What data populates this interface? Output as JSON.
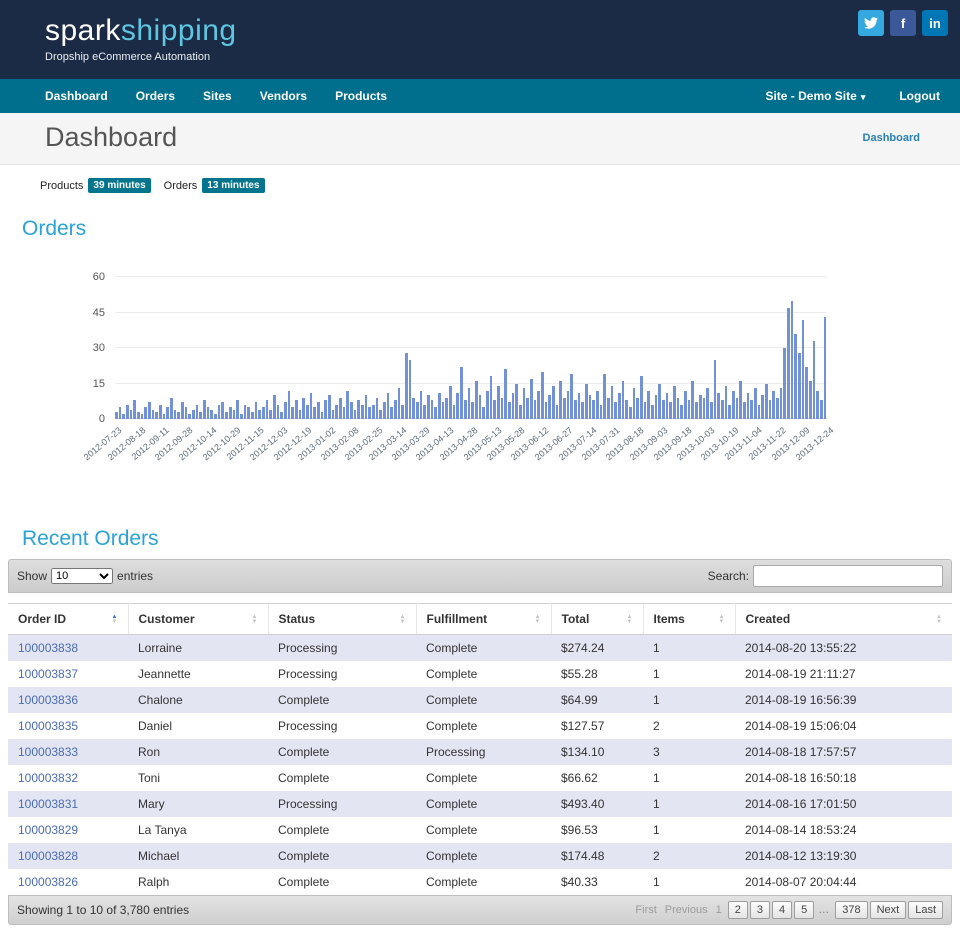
{
  "header": {
    "logo_primary": "spark",
    "logo_secondary": "shipping",
    "tagline": "Dropship eCommerce Automation",
    "social": {
      "facebook_glyph": "f",
      "linkedin_glyph": "in"
    },
    "colors": {
      "twitter": "#35a8df",
      "facebook": "#3b5998",
      "linkedin": "#0077b5"
    }
  },
  "nav": {
    "items": [
      "Dashboard",
      "Orders",
      "Sites",
      "Vendors",
      "Products"
    ],
    "site_selector": "Site - Demo Site",
    "logout": "Logout"
  },
  "page": {
    "title": "Dashboard",
    "breadcrumb": "Dashboard"
  },
  "sync_status": [
    {
      "label": "Products",
      "badge": "39 minutes"
    },
    {
      "label": "Orders",
      "badge": "13 minutes"
    }
  ],
  "sections": {
    "orders_heading": "Orders",
    "recent_orders_heading": "Recent Orders"
  },
  "chart_data": {
    "type": "bar",
    "title": "Orders",
    "xlabel": "",
    "ylabel": "",
    "ylim": [
      0,
      60
    ],
    "yticks": [
      0,
      15,
      30,
      45,
      60
    ],
    "bar_color": "#7291d6",
    "x_ticks": [
      "2012-07-23",
      "2012-08-18",
      "2012-09-11",
      "2012-09-28",
      "2012-10-14",
      "2012-10-29",
      "2012-11-15",
      "2012-12-03",
      "2012-12-19",
      "2013-01-02",
      "2013-02-08",
      "2013-02-25",
      "2013-03-14",
      "2013-03-29",
      "2013-04-13",
      "2013-04-28",
      "2013-05-13",
      "2013-05-28",
      "2013-06-12",
      "2013-06-27",
      "2013-07-14",
      "2013-07-31",
      "2013-08-18",
      "2013-09-03",
      "2013-09-18",
      "2013-10-03",
      "2013-10-19",
      "2013-11-04",
      "2013-11-22",
      "2013-12-09",
      "2013-12-24"
    ],
    "values": [
      3,
      5,
      2,
      6,
      4,
      8,
      3,
      2,
      5,
      7,
      4,
      3,
      6,
      2,
      5,
      9,
      4,
      3,
      7,
      5,
      2,
      4,
      6,
      3,
      8,
      5,
      4,
      2,
      6,
      7,
      3,
      5,
      4,
      8,
      2,
      6,
      5,
      3,
      7,
      4,
      5,
      8,
      4,
      10,
      6,
      3,
      7,
      12,
      5,
      8,
      4,
      9,
      6,
      11,
      5,
      7,
      3,
      8,
      10,
      4,
      6,
      9,
      5,
      12,
      7,
      4,
      8,
      6,
      10,
      5,
      6,
      9,
      4,
      7,
      11,
      5,
      8,
      13,
      6,
      28,
      25,
      9,
      7,
      12,
      6,
      10,
      8,
      5,
      11,
      7,
      9,
      14,
      6,
      11,
      22,
      8,
      13,
      7,
      16,
      10,
      5,
      12,
      18,
      8,
      14,
      9,
      21,
      7,
      11,
      15,
      6,
      13,
      9,
      17,
      8,
      12,
      20,
      7,
      10,
      14,
      6,
      16,
      9,
      12,
      19,
      8,
      11,
      7,
      15,
      10,
      8,
      12,
      6,
      19,
      9,
      14,
      7,
      11,
      16,
      8,
      5,
      13,
      9,
      18,
      7,
      12,
      6,
      10,
      15,
      8,
      11,
      7,
      14,
      9,
      6,
      12,
      8,
      16,
      7,
      10,
      9,
      13,
      7,
      25,
      11,
      8,
      14,
      6,
      12,
      9,
      16,
      7,
      11,
      8,
      13,
      6,
      10,
      15,
      8,
      12,
      9,
      13,
      30,
      47,
      50,
      36,
      28,
      42,
      22,
      16,
      33,
      12,
      8,
      43
    ]
  },
  "table": {
    "show_label": "Show",
    "show_value": "10",
    "entries_label": "entries",
    "search_label": "Search:",
    "columns": [
      {
        "label": "Order ID",
        "sorted": "asc"
      },
      {
        "label": "Customer",
        "sorted": "none"
      },
      {
        "label": "Status",
        "sorted": "none"
      },
      {
        "label": "Fulfillment",
        "sorted": "none"
      },
      {
        "label": "Total",
        "sorted": "none"
      },
      {
        "label": "Items",
        "sorted": "none"
      },
      {
        "label": "Created",
        "sorted": "none"
      }
    ],
    "rows": [
      [
        "100003838",
        "Lorraine",
        "Processing",
        "Complete",
        "$274.24",
        "1",
        "2014-08-20 13:55:22"
      ],
      [
        "100003837",
        "Jeannette",
        "Processing",
        "Complete",
        "$55.28",
        "1",
        "2014-08-19 21:11:27"
      ],
      [
        "100003836",
        "Chalone",
        "Complete",
        "Complete",
        "$64.99",
        "1",
        "2014-08-19 16:56:39"
      ],
      [
        "100003835",
        "Daniel",
        "Processing",
        "Complete",
        "$127.57",
        "2",
        "2014-08-19 15:06:04"
      ],
      [
        "100003833",
        "Ron",
        "Complete",
        "Processing",
        "$134.10",
        "3",
        "2014-08-18 17:57:57"
      ],
      [
        "100003832",
        "Toni",
        "Complete",
        "Complete",
        "$66.62",
        "1",
        "2014-08-18 16:50:18"
      ],
      [
        "100003831",
        "Mary",
        "Processing",
        "Complete",
        "$493.40",
        "1",
        "2014-08-16 17:01:50"
      ],
      [
        "100003829",
        "La Tanya",
        "Complete",
        "Complete",
        "$96.53",
        "1",
        "2014-08-14 18:53:24"
      ],
      [
        "100003828",
        "Michael",
        "Complete",
        "Complete",
        "$174.48",
        "2",
        "2014-08-12 13:19:30"
      ],
      [
        "100003826",
        "Ralph",
        "Complete",
        "Complete",
        "$40.33",
        "1",
        "2014-08-07 20:04:44"
      ]
    ],
    "summary": "Showing 1 to 10 of 3,780 entries",
    "pagination": {
      "first": "First",
      "previous": "Previous",
      "current": "1",
      "pages": [
        "2",
        "3",
        "4",
        "5"
      ],
      "ellipsis": "…",
      "last_page": "378",
      "next": "Next",
      "last": "Last"
    }
  }
}
